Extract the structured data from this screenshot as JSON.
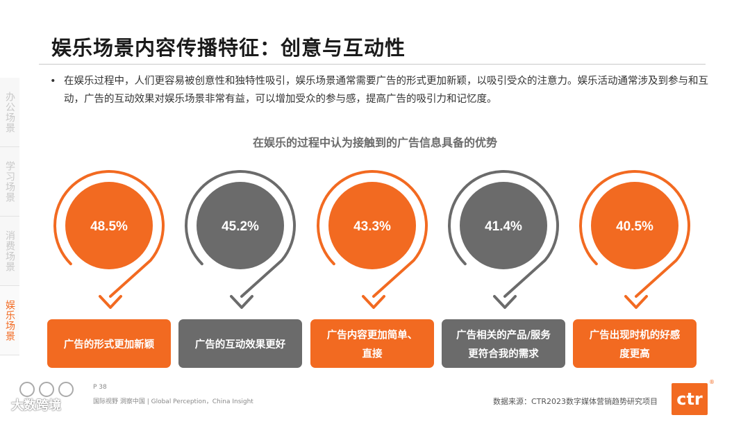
{
  "title": "娱乐场景内容传播特征：创意与互动性",
  "side_tabs": [
    {
      "label": "办公场景",
      "active": false
    },
    {
      "label": "学习场景",
      "active": false
    },
    {
      "label": "消费场景",
      "active": false
    },
    {
      "label": "娱乐场景",
      "active": true
    }
  ],
  "bullet": {
    "dot": "•",
    "text": "在娱乐过程中，人们更容易被创意性和独特性吸引，娱乐场景通常需要广告的形式更加新颖，以吸引受众的注意力。娱乐活动通常涉及到参与和互动，广告的互动效果对娱乐场景非常有益，可以增加受众的参与感，提高广告的吸引力和记忆度。"
  },
  "chart_data": {
    "type": "bar",
    "title": "在娱乐的过程中认为接触到的广告信息具备的优势",
    "categories": [
      "广告的形式更加新颖",
      "广告的互动效果更好",
      "广告内容更加简单、直接",
      "广告相关的产品/服务更符合我的需求",
      "广告出现时机的好感度更高"
    ],
    "category_lines": [
      [
        "广告的形式更加新颖"
      ],
      [
        "广告的互动效果更好"
      ],
      [
        "广告内容更加简单、",
        "直接"
      ],
      [
        "广告相关的产品/服务",
        "更符合我的需求"
      ],
      [
        "广告出现时机的好感",
        "度更高"
      ]
    ],
    "values": [
      48.5,
      45.2,
      43.3,
      41.4,
      40.5
    ],
    "value_labels": [
      "48.5%",
      "45.2%",
      "43.3%",
      "41.4%",
      "40.5%"
    ],
    "unit": "%",
    "colors": [
      "#f26a21",
      "#6b6b6b",
      "#f26a21",
      "#6b6b6b",
      "#f26a21"
    ]
  },
  "footer": {
    "page": "P 38",
    "tagline": "国际视野  洞察中国 | Global Perception，China Insight",
    "watermark": "大数跨境",
    "source": "数据来源：CTR2023数字媒体营销趋势研究项目",
    "logo": "ctr",
    "logo_reg": "®"
  }
}
